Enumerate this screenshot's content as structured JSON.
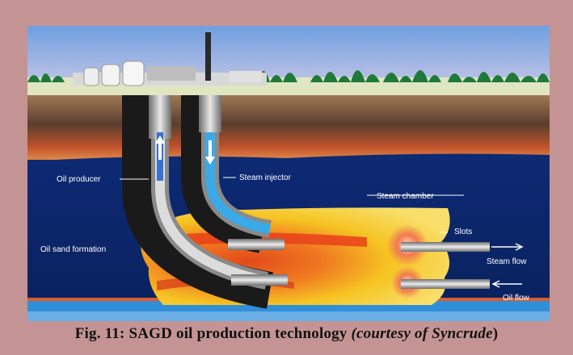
{
  "figure": {
    "labels": {
      "oil_producer": "Oil producer",
      "steam_injector": "Steam injector",
      "steam_chamber": "Steam chamber",
      "oil_sand_formation": "Oil sand formation",
      "slots": "Slots",
      "steam_flow": "Steam flow",
      "oil_flow": "Oil flow"
    }
  },
  "caption": {
    "prefix": "Fig. 11: SAGD oil production technology ",
    "courtesy": "(courtesy of ",
    "company": "Syncrude",
    "close": ")"
  },
  "colors": {
    "background": "#c49494",
    "sky": "#7fa8e0",
    "reservoir": "#0b2a6a",
    "overburden": "#6b4a32",
    "steam_chamber": "#f2c21a",
    "hot_core": "#e04a1c",
    "water": "#2f8fd8"
  }
}
